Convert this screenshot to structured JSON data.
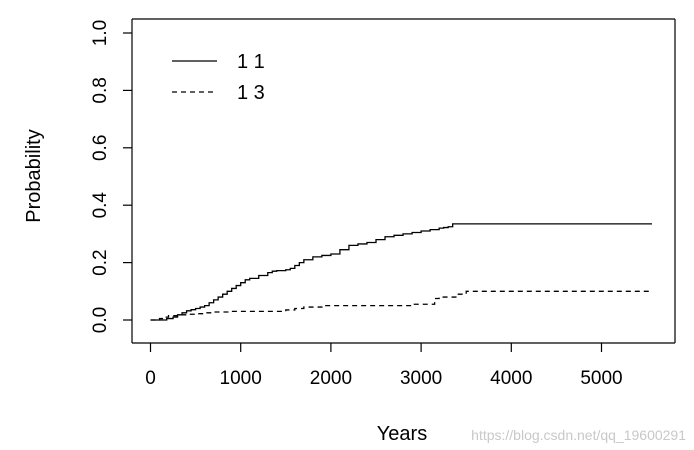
{
  "chart_data": {
    "type": "line",
    "title": "",
    "xlabel": "Years",
    "ylabel": "Probability",
    "xlim": [
      0,
      5600
    ],
    "ylim": [
      0,
      1
    ],
    "xticks": [
      0,
      1000,
      2000,
      3000,
      4000,
      5000
    ],
    "xtick_labels": [
      "0",
      "1000",
      "2000",
      "3000",
      "4000",
      "5000"
    ],
    "yticks": [
      0,
      0.2,
      0.4,
      0.6,
      0.8,
      1.0
    ],
    "ytick_labels": [
      "0.0",
      "0.2",
      "0.4",
      "0.6",
      "0.8",
      "1.0"
    ],
    "grid": false,
    "legend_position": "top-left",
    "series": [
      {
        "name": "1 1",
        "style": "solid",
        "step": true,
        "x": [
          0,
          180,
          250,
          300,
          350,
          400,
          450,
          500,
          550,
          600,
          650,
          700,
          750,
          800,
          850,
          900,
          950,
          1000,
          1050,
          1100,
          1200,
          1300,
          1350,
          1400,
          1500,
          1550,
          1600,
          1650,
          1700,
          1800,
          1900,
          2000,
          2100,
          2200,
          2300,
          2400,
          2500,
          2600,
          2700,
          2800,
          2900,
          3000,
          3100,
          3200,
          3250,
          3300,
          3350,
          5560
        ],
        "y": [
          0,
          0.005,
          0.01,
          0.018,
          0.025,
          0.032,
          0.036,
          0.04,
          0.045,
          0.05,
          0.06,
          0.07,
          0.08,
          0.09,
          0.1,
          0.11,
          0.12,
          0.13,
          0.14,
          0.145,
          0.155,
          0.165,
          0.17,
          0.172,
          0.175,
          0.18,
          0.19,
          0.2,
          0.21,
          0.22,
          0.225,
          0.23,
          0.245,
          0.26,
          0.265,
          0.27,
          0.28,
          0.29,
          0.295,
          0.3,
          0.305,
          0.31,
          0.315,
          0.32,
          0.322,
          0.325,
          0.335,
          0.335
        ]
      },
      {
        "name": "1 3",
        "style": "dashed",
        "step": true,
        "x": [
          0,
          100,
          150,
          200,
          300,
          400,
          500,
          600,
          700,
          900,
          1000,
          1200,
          1500,
          1600,
          1700,
          1800,
          1900,
          2000,
          2500,
          2900,
          3100,
          3150,
          3200,
          3300,
          3400,
          3500,
          5560
        ],
        "y": [
          0,
          0.005,
          0.01,
          0.015,
          0.018,
          0.02,
          0.022,
          0.025,
          0.028,
          0.03,
          0.03,
          0.03,
          0.035,
          0.04,
          0.045,
          0.045,
          0.05,
          0.05,
          0.05,
          0.055,
          0.055,
          0.075,
          0.08,
          0.08,
          0.09,
          0.1,
          0.1
        ]
      }
    ]
  },
  "watermark": "https://blog.csdn.net/qq_19600291"
}
